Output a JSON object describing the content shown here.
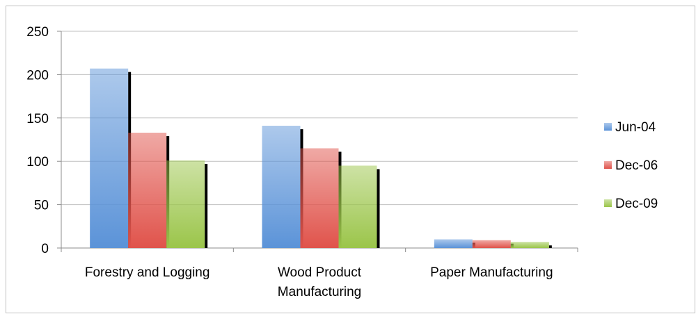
{
  "chart_data": {
    "type": "bar",
    "categories": [
      "Forestry and Logging",
      "Wood Product Manufacturing",
      "Paper Manufacturing"
    ],
    "series": [
      {
        "name": "Jun-04",
        "color": "#5b93d8",
        "values": [
          207,
          141,
          10
        ]
      },
      {
        "name": "Dec-06",
        "color": "#e0534b",
        "values": [
          133,
          115,
          9
        ]
      },
      {
        "name": "Dec-09",
        "color": "#9bc54a",
        "values": [
          101,
          95,
          7
        ]
      }
    ],
    "ylim": [
      0,
      250
    ],
    "yticks": [
      0,
      50,
      100,
      150,
      200,
      250
    ],
    "grid": true,
    "legend": "right"
  }
}
